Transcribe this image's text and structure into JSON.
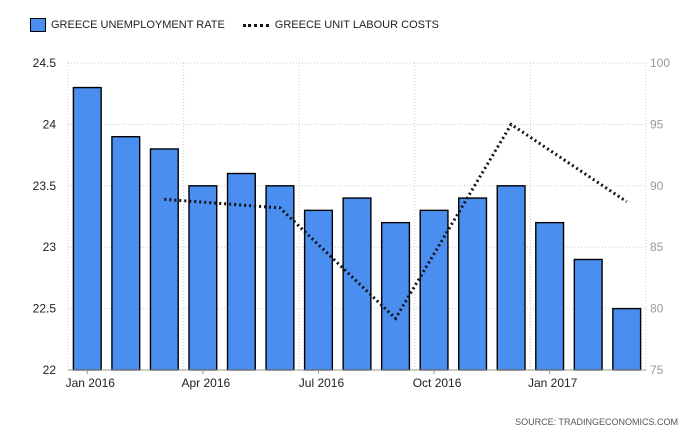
{
  "legend": {
    "unemployment": "GREECE UNEMPLOYMENT RATE",
    "labour": "GREECE UNIT LABOUR COSTS"
  },
  "source": "SOURCE: TRADINGECONOMICS.COM",
  "chart_data": {
    "type": "bar",
    "categories": [
      "Jan 2016",
      "Feb 2016",
      "Mar 2016",
      "Apr 2016",
      "May 2016",
      "Jun 2016",
      "Jul 2016",
      "Aug 2016",
      "Sep 2016",
      "Oct 2016",
      "Nov 2016",
      "Dec 2016",
      "Jan 2017",
      "Feb 2017",
      "Mar 2017"
    ],
    "x_tick_labels": [
      "Jan 2016",
      "Apr 2016",
      "Jul 2016",
      "Oct 2016",
      "Jan 2017"
    ],
    "series": [
      {
        "name": "GREECE UNEMPLOYMENT RATE",
        "type": "bar",
        "axis": "left",
        "values": [
          24.3,
          23.9,
          23.8,
          23.5,
          23.6,
          23.5,
          23.3,
          23.4,
          23.2,
          23.3,
          23.4,
          23.5,
          23.2,
          22.9,
          22.5
        ]
      },
      {
        "name": "GREECE UNIT LABOUR COSTS",
        "type": "line",
        "style": "dotted",
        "axis": "right",
        "points": [
          {
            "x": "Mar 2016",
            "y": 88.9
          },
          {
            "x": "Jun 2016",
            "y": 88.2
          },
          {
            "x": "Sep 2016",
            "y": 79.2
          },
          {
            "x": "Dec 2016",
            "y": 95.0
          },
          {
            "x": "Mar 2017",
            "y": 88.7
          }
        ]
      }
    ],
    "y_left": {
      "min": 22,
      "max": 24.5,
      "ticks": [
        "22",
        "22.5",
        "23",
        "23.5",
        "24",
        "24.5"
      ]
    },
    "y_right": {
      "min": 75,
      "max": 100,
      "ticks": [
        "75",
        "80",
        "85",
        "90",
        "95",
        "100"
      ]
    },
    "grid": true,
    "legend_position": "top-left",
    "colors": {
      "bar": "#4a8ef0",
      "bar_border": "#000000",
      "line": "#111111",
      "grid": "#cccccc"
    }
  }
}
